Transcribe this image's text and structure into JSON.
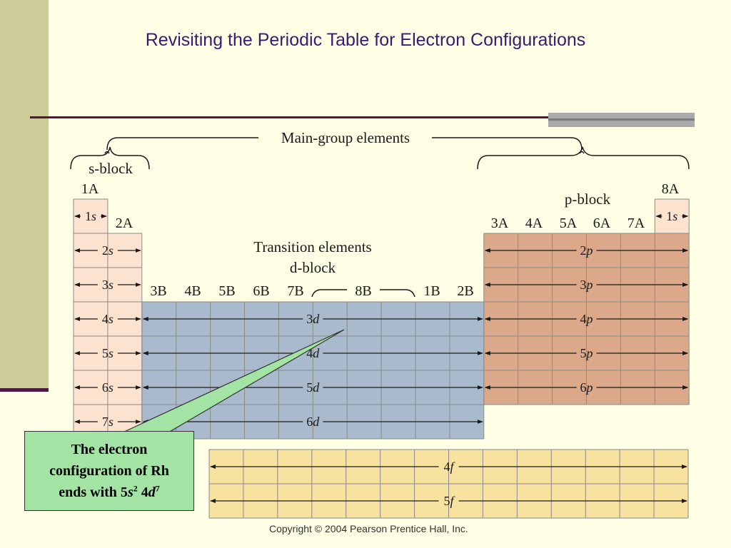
{
  "slide": {
    "title": "Revisiting the Periodic Table for Electron Configurations",
    "copyright": "Copyright © 2004 Pearson Prentice Hall, Inc."
  },
  "figure": {
    "main_group_label": "Main-group elements",
    "s_block_label": "s-block",
    "p_block_label": "p-block",
    "transition_label": "Transition elements",
    "d_block_label": "d-block",
    "group_headers": {
      "g1A": "1A",
      "g2A": "2A",
      "g3A": "3A",
      "g4A": "4A",
      "g5A": "5A",
      "g6A": "6A",
      "g7A": "7A",
      "g8A": "8A",
      "g3B": "3B",
      "g4B": "4B",
      "g5B": "5B",
      "g6B": "6B",
      "g7B": "7B",
      "g8B": "8B",
      "g1B": "1B",
      "g2B": "2B"
    },
    "s_rows": [
      "1s",
      "2s",
      "3s",
      "4s",
      "5s",
      "6s",
      "7s"
    ],
    "he_label": "1s",
    "p_rows": [
      "2p",
      "3p",
      "4p",
      "5p",
      "6p"
    ],
    "d_rows": [
      "3d",
      "4d",
      "5d",
      "6d"
    ],
    "f_rows": [
      "4f",
      "5f"
    ],
    "colors": {
      "s_block": "#fbe3cf",
      "p_block": "#dba98a",
      "d_block": "#a8bacb",
      "f_block": "#f7e2a0",
      "grid": "#8a8a8a"
    }
  },
  "callout": {
    "line1": "The electron",
    "line2": "configuration of Rh",
    "line3_prefix": "ends with 5",
    "s_letter": "s",
    "s_exp": "2",
    "d_prefix": " 4",
    "d_letter": "d",
    "d_exp": "7"
  }
}
